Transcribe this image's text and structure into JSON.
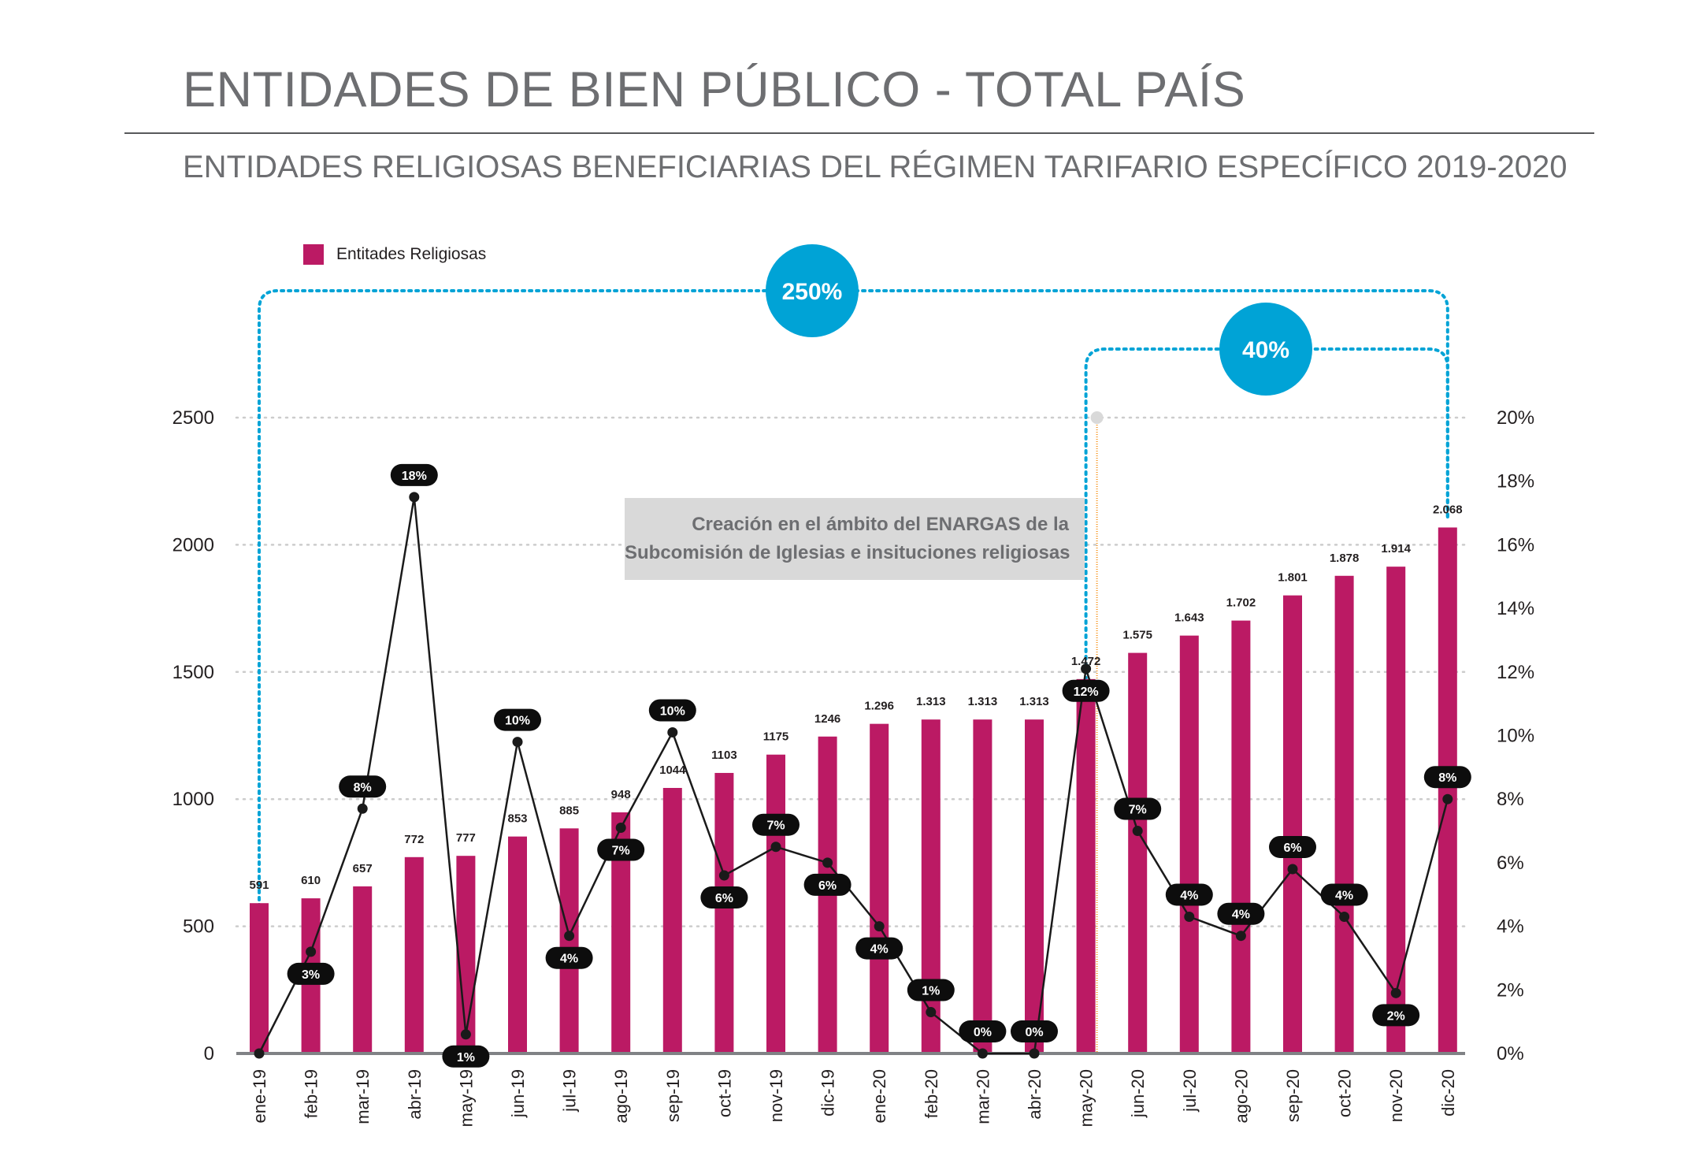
{
  "header": {
    "title": "ENTIDADES DE BIEN PÚBLICO - TOTAL PAÍS",
    "subtitle": "ENTIDADES RELIGIOSAS BENEFICIARIAS DEL RÉGIMEN TARIFARIO ESPECÍFICO 2019-2020"
  },
  "legend": {
    "label": "Entitades Religiosas",
    "color": "#bb1a64"
  },
  "annotation": {
    "line1": "Creación en el ámbito del ENARGAS de la",
    "line2": "Subcomisión de Iglesias e insituciones religiosas"
  },
  "highlights": [
    {
      "label": "250%",
      "from": "ene-19",
      "to": "dic-20"
    },
    {
      "label": "40%",
      "from": "may-20",
      "to": "dic-20"
    }
  ],
  "colors": {
    "bars": "#bb1a64",
    "line": "#1a1a1a",
    "callout": "#00a3d6",
    "marker": "#f7941d",
    "grid": "#cccccc"
  },
  "chart_data": {
    "type": "bar",
    "categories": [
      "ene-19",
      "feb-19",
      "mar-19",
      "abr-19",
      "may-19",
      "jun-19",
      "jul-19",
      "ago-19",
      "sep-19",
      "oct-19",
      "nov-19",
      "dic-19",
      "ene-20",
      "feb-20",
      "mar-20",
      "abr-20",
      "may-20",
      "jun-20",
      "jul-20",
      "ago-20",
      "sep-20",
      "oct-20",
      "nov-20",
      "dic-20"
    ],
    "series": [
      {
        "name": "Entitades Religiosas",
        "type": "bar",
        "axis": "left",
        "values": [
          591,
          610,
          657,
          772,
          777,
          853,
          885,
          948,
          1044,
          1103,
          1175,
          1246,
          1296,
          1313,
          1313,
          1313,
          1472,
          1575,
          1643,
          1702,
          1801,
          1878,
          1914,
          2068
        ],
        "labels": [
          "591",
          "610",
          "657",
          "772",
          "777",
          "853",
          "885",
          "948",
          "1044",
          "1103",
          "1175",
          "1246",
          "1.296",
          "1.313",
          "1.313",
          "1.313",
          "1.472",
          "1.575",
          "1.643",
          "1.702",
          "1.801",
          "1.878",
          "1.914",
          "2.068"
        ]
      },
      {
        "type": "line",
        "axis": "right",
        "values": [
          0,
          3.2,
          7.7,
          17.5,
          0.6,
          9.8,
          3.7,
          7.1,
          10.1,
          5.6,
          6.5,
          6.0,
          4.0,
          1.3,
          0,
          0,
          12.1,
          7.0,
          4.3,
          3.7,
          5.8,
          4.3,
          1.9,
          8.0
        ],
        "labels": [
          "",
          "3%",
          "8%",
          "18%",
          "1%",
          "10%",
          "4%",
          "7%",
          "10%",
          "6%",
          "7%",
          "6%",
          "4%",
          "1%",
          "0%",
          "0%",
          "12%",
          "7%",
          "4%",
          "4%",
          "6%",
          "4%",
          "2%",
          "8%"
        ]
      }
    ],
    "ylim": [
      0,
      2500
    ],
    "yticks": [
      "0",
      "500",
      "1000",
      "1500",
      "2000",
      "2500"
    ],
    "y2lim": [
      0,
      20
    ],
    "y2ticks": [
      "0%",
      "2%",
      "4%",
      "6%",
      "8%",
      "10%",
      "12%",
      "14%",
      "16%",
      "18%",
      "20%"
    ],
    "grid": true,
    "legend_position": "top-left"
  }
}
